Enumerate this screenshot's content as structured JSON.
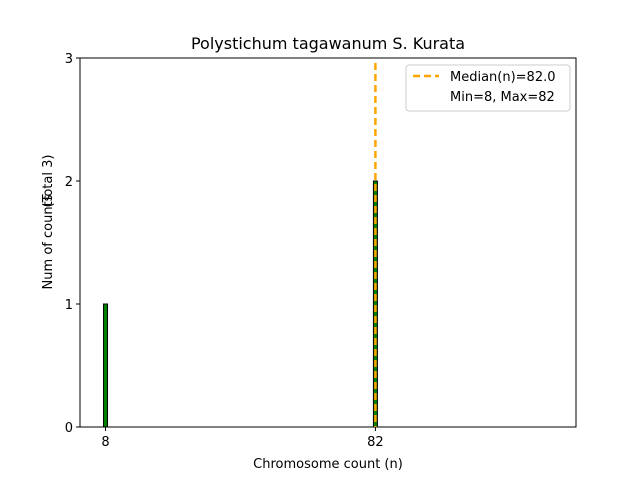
{
  "chart_data": {
    "type": "bar",
    "title": "Polystichum tagawanum S. Kurata",
    "xlabel": "Chromosome count (n)",
    "ylabel": "Num of counts",
    "ylabel_secondary": "(Total 3)",
    "x": [
      8,
      82
    ],
    "values": [
      1,
      2
    ],
    "bar_color": "#008000",
    "bar_edge_color": "#000000",
    "xlim": [
      1,
      137
    ],
    "ylim": [
      0,
      3
    ],
    "xticks": [
      8,
      82
    ],
    "yticks": [
      0,
      1,
      2,
      3
    ],
    "median_line": {
      "value": 82.0,
      "color": "#FFA500",
      "style": "dashed"
    },
    "legend": {
      "position": "top-right",
      "entries": [
        {
          "label": "Median(n)=82.0",
          "kind": "dashed-line",
          "color": "#FFA500"
        },
        {
          "label": "Min=8, Max=82",
          "kind": "none"
        }
      ]
    },
    "grid": false
  }
}
